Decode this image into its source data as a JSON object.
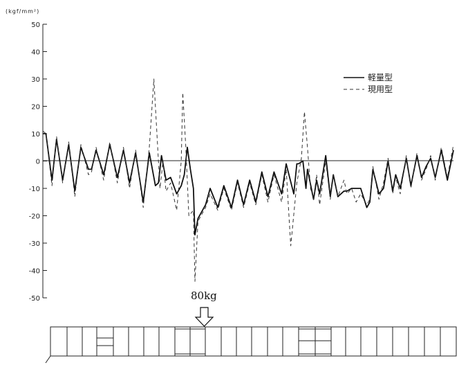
{
  "chart_data": {
    "type": "line",
    "ylabel": "(kgf/mm²)",
    "ylim": [
      -50,
      50
    ],
    "y_ticks": [
      50,
      40,
      30,
      20,
      10,
      0,
      -10,
      -20,
      -30,
      -40,
      -50
    ],
    "x_axis": "position along frame (no tick labels)",
    "grid": false,
    "legend": {
      "placement": "top-right"
    },
    "annotation": {
      "label": "80kg"
    },
    "series": [
      {
        "name": "軽量型",
        "style": "solid",
        "color": "#111111",
        "points": [
          [
            0,
            10
          ],
          [
            1,
            10
          ],
          [
            3,
            -7
          ],
          [
            4.5,
            8
          ],
          [
            6.5,
            -7
          ],
          [
            8.5,
            6
          ],
          [
            10.5,
            -11
          ],
          [
            12.5,
            5
          ],
          [
            15,
            -3
          ],
          [
            16,
            -3
          ],
          [
            17.5,
            4
          ],
          [
            20,
            -5
          ],
          [
            22,
            6
          ],
          [
            24.5,
            -6
          ],
          [
            26.5,
            4
          ],
          [
            28.5,
            -8
          ],
          [
            30.5,
            3
          ],
          [
            33,
            -15
          ],
          [
            35,
            3
          ],
          [
            37,
            -9
          ],
          [
            38,
            -8
          ],
          [
            39,
            2
          ],
          [
            40.5,
            -7
          ],
          [
            42,
            -6
          ],
          [
            44,
            -12
          ],
          [
            45.5,
            -9
          ],
          [
            46.5,
            -5
          ],
          [
            47.5,
            5
          ],
          [
            48.5,
            -3
          ],
          [
            49.5,
            -10
          ],
          [
            50,
            -27
          ],
          [
            51,
            -21
          ],
          [
            53.5,
            -16
          ],
          [
            55,
            -10
          ],
          [
            57.5,
            -17
          ],
          [
            59.5,
            -9
          ],
          [
            62,
            -17
          ],
          [
            64,
            -7
          ],
          [
            66,
            -16
          ],
          [
            68,
            -7
          ],
          [
            70,
            -15
          ],
          [
            72,
            -4
          ],
          [
            74,
            -13
          ],
          [
            76,
            -4
          ],
          [
            78.5,
            -12
          ],
          [
            80,
            -1
          ],
          [
            82.5,
            -12
          ],
          [
            83.5,
            -1
          ],
          [
            84,
            -1
          ],
          [
            85.5,
            0
          ],
          [
            86.5,
            -10
          ],
          [
            87,
            -3
          ],
          [
            89,
            -14
          ],
          [
            90,
            -7
          ],
          [
            91,
            -12
          ],
          [
            93,
            2
          ],
          [
            94.5,
            -13
          ],
          [
            95.5,
            -5
          ],
          [
            97,
            -13
          ],
          [
            99,
            -11
          ],
          [
            100,
            -11
          ],
          [
            101.5,
            -10
          ],
          [
            103,
            -10
          ],
          [
            104.5,
            -10
          ],
          [
            106.5,
            -17
          ],
          [
            107.5,
            -15
          ],
          [
            108.5,
            -3
          ],
          [
            110.5,
            -12
          ],
          [
            112,
            -10
          ],
          [
            113.5,
            0
          ],
          [
            115,
            -11
          ],
          [
            116,
            -5
          ],
          [
            117.5,
            -10
          ],
          [
            119.5,
            1
          ],
          [
            121,
            -9
          ],
          [
            123,
            2
          ],
          [
            124.5,
            -6
          ],
          [
            126,
            -2
          ],
          [
            127.5,
            1
          ],
          [
            129,
            -6
          ],
          [
            131,
            4
          ],
          [
            133,
            -7
          ],
          [
            135,
            4
          ]
        ]
      },
      {
        "name": "現用型",
        "style": "dashed",
        "color": "#333333",
        "points": [
          [
            0,
            11
          ],
          [
            1,
            10
          ],
          [
            3,
            -9
          ],
          [
            4.5,
            9
          ],
          [
            6.5,
            -8
          ],
          [
            8.5,
            7
          ],
          [
            10.5,
            -13
          ],
          [
            12.5,
            6
          ],
          [
            15,
            -5
          ],
          [
            16,
            -4
          ],
          [
            17.5,
            5
          ],
          [
            20,
            -7
          ],
          [
            22,
            7
          ],
          [
            24.5,
            -8
          ],
          [
            26.5,
            5
          ],
          [
            28.5,
            -10
          ],
          [
            30.5,
            4
          ],
          [
            33,
            -17
          ],
          [
            35,
            5
          ],
          [
            36.5,
            30
          ],
          [
            38.5,
            -10
          ],
          [
            39.5,
            0
          ],
          [
            40.5,
            -11
          ],
          [
            42,
            -8
          ],
          [
            44,
            -18
          ],
          [
            45.5,
            0
          ],
          [
            46,
            25
          ],
          [
            47,
            5
          ],
          [
            48,
            -20
          ],
          [
            49.5,
            -18
          ],
          [
            50,
            -44
          ],
          [
            51,
            -22
          ],
          [
            53.5,
            -17
          ],
          [
            55,
            -12
          ],
          [
            57.5,
            -18
          ],
          [
            59.5,
            -10
          ],
          [
            62,
            -18
          ],
          [
            64,
            -8
          ],
          [
            66,
            -17
          ],
          [
            68,
            -8
          ],
          [
            70,
            -16
          ],
          [
            72,
            -5
          ],
          [
            74,
            -15
          ],
          [
            76,
            -5
          ],
          [
            78.5,
            -15
          ],
          [
            80,
            -3
          ],
          [
            81.5,
            -31
          ],
          [
            83.5,
            -8
          ],
          [
            85,
            1
          ],
          [
            86,
            18
          ],
          [
            87,
            5
          ],
          [
            88,
            -10
          ],
          [
            89,
            -14
          ],
          [
            90,
            -5
          ],
          [
            91,
            -16
          ],
          [
            93,
            0
          ],
          [
            94.5,
            -14
          ],
          [
            95.5,
            -5
          ],
          [
            97,
            -13
          ],
          [
            99,
            -7
          ],
          [
            100,
            -12
          ],
          [
            101.5,
            -10
          ],
          [
            103,
            -15
          ],
          [
            104.5,
            -12
          ],
          [
            106.5,
            -16
          ],
          [
            107.5,
            -14
          ],
          [
            108.5,
            -2
          ],
          [
            110.5,
            -14
          ],
          [
            112,
            -8
          ],
          [
            113.5,
            1
          ],
          [
            115,
            -12
          ],
          [
            116,
            -6
          ],
          [
            117.5,
            -12
          ],
          [
            119.5,
            2
          ],
          [
            121,
            -10
          ],
          [
            123,
            3
          ],
          [
            124.5,
            -7
          ],
          [
            126,
            -3
          ],
          [
            127.5,
            2
          ],
          [
            129,
            -7
          ],
          [
            131,
            5
          ],
          [
            133,
            -6
          ],
          [
            135,
            6
          ]
        ]
      }
    ]
  }
}
